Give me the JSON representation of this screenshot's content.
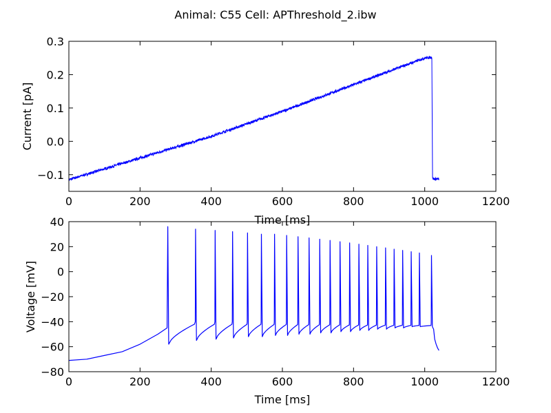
{
  "figure_title": "Animal: C55 Cell: APThreshold_2.ibw",
  "colors": {
    "series": "#0000ff",
    "axes": "#000000",
    "background": "#ffffff"
  },
  "chart_data": [
    {
      "type": "line",
      "xlabel": "Time [ms]",
      "ylabel": "Current [pA]",
      "xlim": [
        0,
        1200
      ],
      "ylim": [
        -0.15,
        0.3
      ],
      "xticks": [
        0,
        200,
        400,
        600,
        800,
        1000,
        1200
      ],
      "yticks": [
        -0.1,
        0.0,
        0.1,
        0.2,
        0.3
      ],
      "ytick_labels": [
        "−0.1",
        "0.0",
        "0.1",
        "0.2",
        "0.3"
      ],
      "grid": false,
      "series": [
        {
          "x": [
            0,
            200,
            400,
            600,
            800,
            1000,
            1020,
            1022,
            1025,
            1040
          ],
          "y": [
            -0.115,
            -0.05,
            0.015,
            0.09,
            0.17,
            0.25,
            0.252,
            -0.11,
            -0.113,
            -0.113
          ],
          "noise_amplitude": 0.004
        }
      ]
    },
    {
      "type": "line",
      "xlabel": "Time [ms]",
      "ylabel": "Voltage [mV]",
      "xlim": [
        0,
        1200
      ],
      "ylim": [
        -80,
        40
      ],
      "xticks": [
        0,
        200,
        400,
        600,
        800,
        1000,
        1200
      ],
      "yticks": [
        -80,
        -60,
        -40,
        -20,
        0,
        20,
        40
      ],
      "ytick_labels": [
        "−80",
        "−60",
        "−40",
        "−20",
        "0",
        "20",
        "40"
      ],
      "grid": false,
      "series": [
        {
          "baseline": [
            [
              0,
              -71
            ],
            [
              50,
              -70
            ],
            [
              100,
              -67
            ],
            [
              150,
              -64
            ],
            [
              200,
              -58
            ],
            [
              250,
              -50
            ],
            [
              276,
              -45
            ]
          ],
          "spikes": [
            {
              "t": 278,
              "peak": 36,
              "trough": -58
            },
            {
              "t": 356,
              "peak": 34,
              "trough": -55
            },
            {
              "t": 411,
              "peak": 33,
              "trough": -54
            },
            {
              "t": 460,
              "peak": 32,
              "trough": -53
            },
            {
              "t": 502,
              "peak": 31,
              "trough": -52
            },
            {
              "t": 541,
              "peak": 30,
              "trough": -52
            },
            {
              "t": 578,
              "peak": 30,
              "trough": -51
            },
            {
              "t": 612,
              "peak": 29,
              "trough": -51
            },
            {
              "t": 644,
              "peak": 28,
              "trough": -50
            },
            {
              "t": 675,
              "peak": 27,
              "trough": -50
            },
            {
              "t": 705,
              "peak": 26,
              "trough": -49
            },
            {
              "t": 734,
              "peak": 25,
              "trough": -49
            },
            {
              "t": 762,
              "peak": 24,
              "trough": -48
            },
            {
              "t": 789,
              "peak": 23,
              "trough": -48
            },
            {
              "t": 815,
              "peak": 22,
              "trough": -47
            },
            {
              "t": 840,
              "peak": 21,
              "trough": -47
            },
            {
              "t": 865,
              "peak": 20,
              "trough": -46
            },
            {
              "t": 890,
              "peak": 19,
              "trough": -46
            },
            {
              "t": 914,
              "peak": 18,
              "trough": -45
            },
            {
              "t": 938,
              "peak": 17,
              "trough": -45
            },
            {
              "t": 962,
              "peak": 16,
              "trough": -44
            },
            {
              "t": 985,
              "peak": 15,
              "trough": -44
            },
            {
              "t": 1019,
              "peak": 13,
              "trough": -44
            }
          ],
          "tail": [
            [
              1025,
              -46
            ],
            [
              1028,
              -54
            ],
            [
              1032,
              -58
            ],
            [
              1036,
              -61
            ],
            [
              1040,
              -63
            ]
          ]
        }
      ]
    }
  ]
}
